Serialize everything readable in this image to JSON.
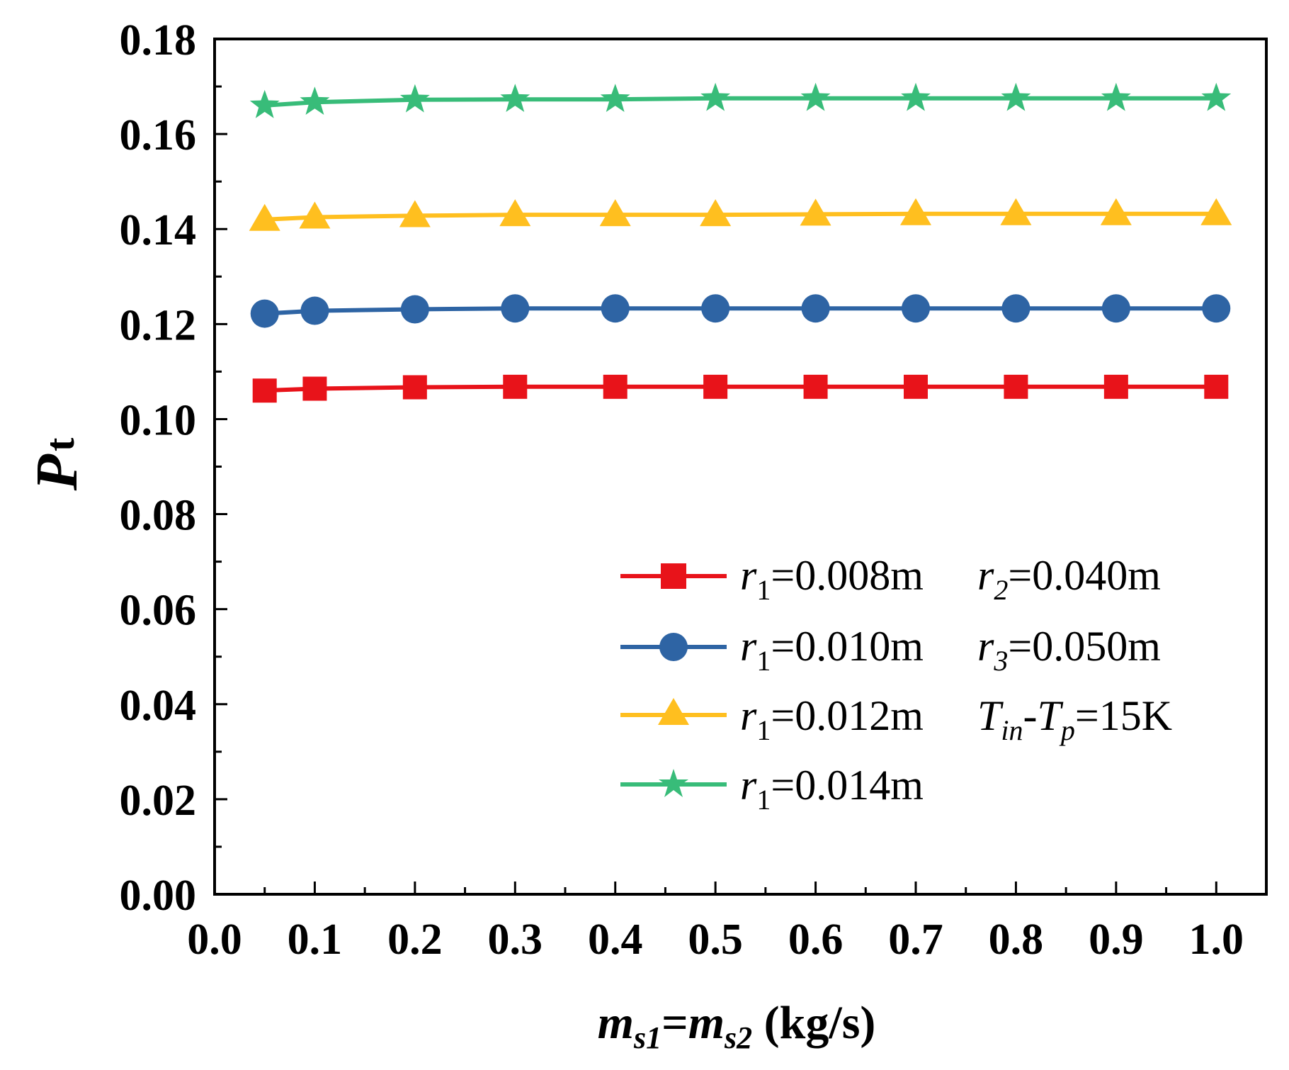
{
  "chart_data": {
    "type": "line",
    "x": [
      0.05,
      0.1,
      0.2,
      0.3,
      0.4,
      0.5,
      0.6,
      0.7,
      0.8,
      0.9,
      1.0
    ],
    "xlim": [
      0.0,
      1.05
    ],
    "ylim": [
      0.0,
      0.18
    ],
    "xticks": [
      "0.0",
      "0.1",
      "0.2",
      "0.3",
      "0.4",
      "0.5",
      "0.6",
      "0.7",
      "0.8",
      "0.9",
      "1.0"
    ],
    "yticks": [
      "0.00",
      "0.02",
      "0.04",
      "0.06",
      "0.08",
      "0.10",
      "0.12",
      "0.14",
      "0.16",
      "0.18"
    ],
    "xlabel": {
      "m1": "m",
      "s1": "s1",
      "eq": "=",
      "m2": "m",
      "s2": "s2",
      "unit": " (kg/s)"
    },
    "ylabel": {
      "main": "P",
      "sub": "t"
    },
    "grid": false,
    "legend_position": "center-right",
    "series": [
      {
        "name": "r1=0.008m",
        "marker": "square",
        "color": "#e8131a",
        "values": [
          0.106,
          0.1064,
          0.1067,
          0.1068,
          0.1068,
          0.1068,
          0.1068,
          0.1068,
          0.1068,
          0.1068,
          0.1068
        ]
      },
      {
        "name": "r1=0.010m",
        "marker": "circle",
        "color": "#2e64a4",
        "values": [
          0.1222,
          0.1228,
          0.1231,
          0.1233,
          0.1233,
          0.1233,
          0.1233,
          0.1233,
          0.1233,
          0.1233,
          0.1233
        ]
      },
      {
        "name": "r1=0.012m",
        "marker": "triangle",
        "color": "#ffbf1f",
        "values": [
          0.142,
          0.1425,
          0.1428,
          0.143,
          0.143,
          0.143,
          0.1431,
          0.1432,
          0.1432,
          0.1432,
          0.1432
        ]
      },
      {
        "name": "r1=0.014m",
        "marker": "star",
        "color": "#38bc79",
        "values": [
          0.166,
          0.1667,
          0.1672,
          0.1673,
          0.1673,
          0.1675,
          0.1675,
          0.1675,
          0.1675,
          0.1675,
          0.1675
        ]
      }
    ],
    "legend": [
      {
        "r": "r",
        "sub": "1",
        "val": "=0.008m",
        "extra_var": "r",
        "extra_sub": "2",
        "extra_val": "=0.040m"
      },
      {
        "r": "r",
        "sub": "1",
        "val": "=0.010m",
        "extra_var": "r",
        "extra_sub": "3",
        "extra_val": "=0.050m"
      },
      {
        "r": "r",
        "sub": "1",
        "val": "=0.012m",
        "extra_var": "T",
        "extra_sub": "in",
        "extra_mid": "-",
        "extra_var2": "T",
        "extra_sub2": "p",
        "extra_val": "=15K"
      },
      {
        "r": "r",
        "sub": "1",
        "val": "=0.014m"
      }
    ]
  }
}
